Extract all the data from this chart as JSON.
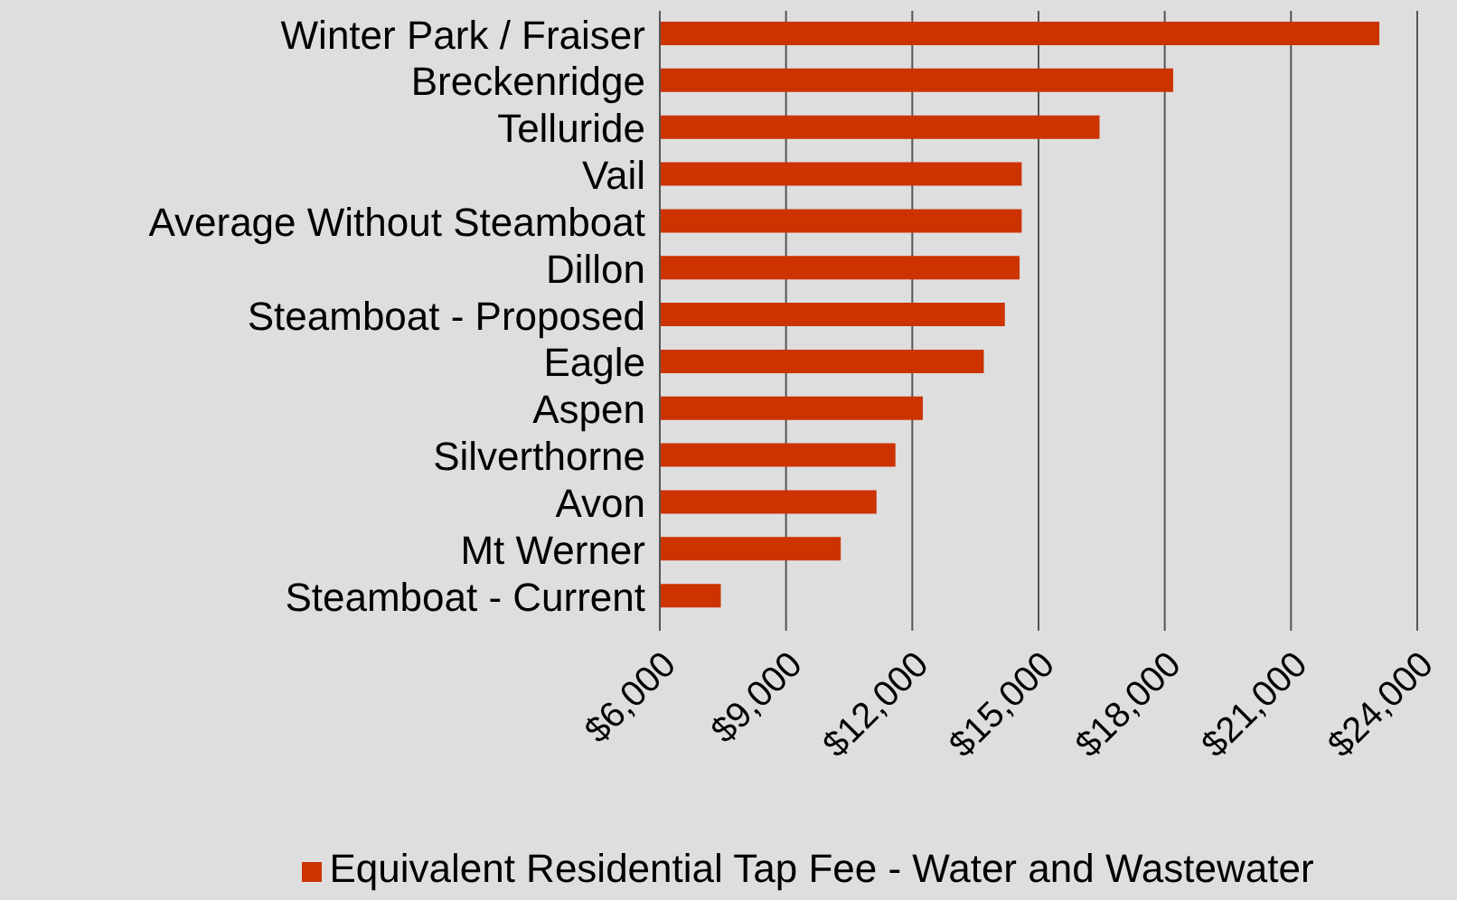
{
  "chart_data": {
    "type": "bar",
    "orientation": "horizontal",
    "categories": [
      "Winter Park / Fraiser",
      "Breckenridge",
      "Telluride",
      "Vail",
      "Average Without Steamboat",
      "Dillon",
      "Steamboat - Proposed",
      "Eagle",
      "Aspen",
      "Silverthorne",
      "Avon",
      "Mt Werner",
      "Steamboat - Current"
    ],
    "series": [
      {
        "name": "Equivalent Residential Tap Fee - Water and Wastewater",
        "color": "#cc3300",
        "values": [
          23100,
          18200,
          16450,
          14600,
          14600,
          14550,
          14200,
          13700,
          12250,
          11600,
          11150,
          10300,
          7450
        ]
      }
    ],
    "xlim": [
      6000,
      24000
    ],
    "xticks": [
      {
        "value": 6000,
        "label": "$6,000"
      },
      {
        "value": 9000,
        "label": "$9,000"
      },
      {
        "value": 12000,
        "label": "$12,000"
      },
      {
        "value": 15000,
        "label": "$15,000"
      },
      {
        "value": 18000,
        "label": "$18,000"
      },
      {
        "value": 21000,
        "label": "$21,000"
      },
      {
        "value": 24000,
        "label": "$24,000"
      }
    ],
    "grid": "x",
    "legend": "bottom"
  }
}
